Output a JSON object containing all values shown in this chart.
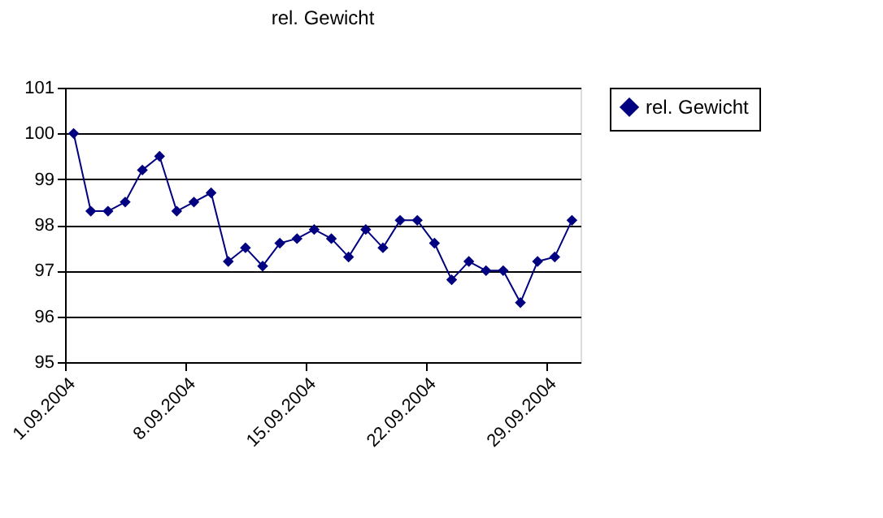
{
  "chart_data": {
    "type": "line",
    "title": "rel. Gewicht",
    "x": [
      "2004-09-01T12:00",
      "2004-09-02T12:00",
      "2004-09-03T12:00",
      "2004-09-04T12:00",
      "2004-09-05T12:00",
      "2004-09-06T12:00",
      "2004-09-07T12:00",
      "2004-09-08T12:00",
      "2004-09-09T12:00",
      "2004-09-10T12:00",
      "2004-09-11T12:00",
      "2004-09-12T12:00",
      "2004-09-13T12:00",
      "2004-09-14T12:00",
      "2004-09-15T12:00",
      "2004-09-16T12:00",
      "2004-09-17T12:00",
      "2004-09-18T12:00",
      "2004-09-19T12:00",
      "2004-09-20T12:00",
      "2004-09-21T12:00",
      "2004-09-22T12:00",
      "2004-09-23T12:00",
      "2004-09-24T12:00",
      "2004-09-25T12:00",
      "2004-09-26T12:00",
      "2004-09-27T12:00",
      "2004-09-28T12:00",
      "2004-09-29T12:00",
      "2004-09-30T12:00"
    ],
    "series": [
      {
        "name": "rel. Gewicht",
        "color": "#000080",
        "values": [
          100,
          98.3,
          98.3,
          98.5,
          99.2,
          99.5,
          98.3,
          98.5,
          98.7,
          97.2,
          97.5,
          97.1,
          97.6,
          97.7,
          97.9,
          97.7,
          97.3,
          97.9,
          97.5,
          98.1,
          98.1,
          97.6,
          96.8,
          97.2,
          97.0,
          97.0,
          96.3,
          97.2,
          97.3,
          98.1
        ]
      }
    ],
    "xlim": [
      "2004-09-01",
      "2004-10-01"
    ],
    "xticks": [
      {
        "value": "2004-09-01",
        "label": "1.09.2004"
      },
      {
        "value": "2004-09-08",
        "label": "8.09.2004"
      },
      {
        "value": "2004-09-15",
        "label": "15.09.2004"
      },
      {
        "value": "2004-09-22",
        "label": "22.09.2004"
      },
      {
        "value": "2004-09-29",
        "label": "29.09.2004"
      }
    ],
    "ylim": [
      95,
      101
    ],
    "yticks": [
      95,
      96,
      97,
      98,
      99,
      100,
      101
    ],
    "grid": "y",
    "legend": "right",
    "marker": "diamond",
    "line_style": "solid"
  }
}
